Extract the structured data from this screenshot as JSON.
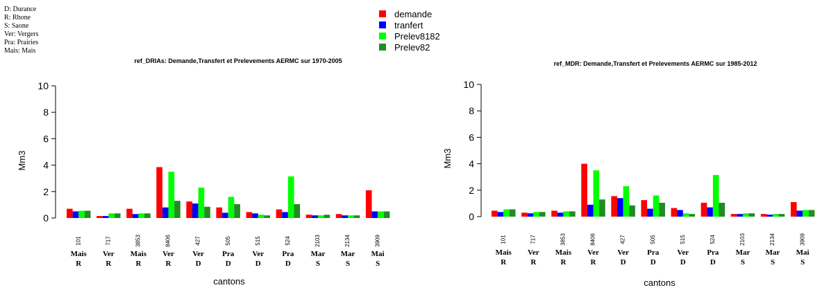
{
  "abbreviations": [
    "D: Durance",
    "R: Rhone",
    "S: Saone",
    "Ver: Vergers",
    "Pra: Prairies",
    "Mais: Mais"
  ],
  "legend": [
    {
      "label": "demande",
      "color": "#ff0000"
    },
    {
      "label": "tranfert",
      "color": "#0000ff"
    },
    {
      "label": "Prelev8182",
      "color": "#00ff00"
    },
    {
      "label": "Prelev82",
      "color": "#228b22"
    }
  ],
  "chart_data": [
    {
      "type": "bar",
      "title": "ref_DRIAs: Demande,Transfert et Prelevements AERMC sur 1970-2005",
      "xlabel": "cantons",
      "ylabel": "Mm3",
      "ylim": [
        0,
        10
      ],
      "yticks": [
        0,
        2,
        4,
        6,
        8,
        10
      ],
      "grid": false,
      "categories": [
        "101",
        "717",
        "3853",
        "8406",
        "427",
        "505",
        "515",
        "524",
        "2103",
        "2134",
        "3909"
      ],
      "category_labels": [
        [
          "Mais",
          "R"
        ],
        [
          "Ver",
          "R"
        ],
        [
          "Mais",
          "R"
        ],
        [
          "Ver",
          "R"
        ],
        [
          "Ver",
          "D"
        ],
        [
          "Pra",
          "D"
        ],
        [
          "Ver",
          "D"
        ],
        [
          "Pra",
          "D"
        ],
        [
          "Mar",
          "S"
        ],
        [
          "Mar",
          "S"
        ],
        [
          "Mai",
          "S"
        ]
      ],
      "series": [
        {
          "name": "demande",
          "values": [
            0.7,
            0.15,
            0.7,
            3.85,
            1.25,
            0.8,
            0.45,
            0.65,
            0.25,
            0.3,
            2.1
          ]
        },
        {
          "name": "tranfert",
          "values": [
            0.5,
            0.15,
            0.3,
            0.8,
            1.1,
            0.4,
            0.35,
            0.45,
            0.2,
            0.2,
            0.5
          ]
        },
        {
          "name": "Prelev8182",
          "values": [
            0.55,
            0.35,
            0.35,
            3.5,
            2.3,
            1.6,
            0.25,
            3.15,
            0.2,
            0.2,
            0.5
          ]
        },
        {
          "name": "Prelev82",
          "values": [
            0.55,
            0.35,
            0.35,
            1.3,
            0.85,
            1.05,
            0.2,
            1.05,
            0.25,
            0.2,
            0.5
          ]
        }
      ]
    },
    {
      "type": "bar",
      "title": "ref_MDR: Demande,Transfert et Prelevements AERMC sur 1985-2012",
      "xlabel": "cantons",
      "ylabel": "Mm3",
      "ylim": [
        0,
        10
      ],
      "yticks": [
        0,
        2,
        4,
        6,
        8,
        10
      ],
      "grid": false,
      "categories": [
        "101",
        "717",
        "3853",
        "8406",
        "427",
        "505",
        "515",
        "524",
        "2103",
        "2134",
        "3909"
      ],
      "category_labels": [
        [
          "Mais",
          "R"
        ],
        [
          "Ver",
          "R"
        ],
        [
          "Mais",
          "R"
        ],
        [
          "Ver",
          "R"
        ],
        [
          "Ver",
          "D"
        ],
        [
          "Pra",
          "D"
        ],
        [
          "Ver",
          "D"
        ],
        [
          "Pra",
          "D"
        ],
        [
          "Mar",
          "S"
        ],
        [
          "Mar",
          "S"
        ],
        [
          "Mai",
          "S"
        ]
      ],
      "series": [
        {
          "name": "demande",
          "values": [
            0.45,
            0.3,
            0.45,
            4.0,
            1.55,
            1.25,
            0.65,
            1.05,
            0.2,
            0.2,
            1.1
          ]
        },
        {
          "name": "tranfert",
          "values": [
            0.35,
            0.25,
            0.3,
            0.9,
            1.4,
            0.6,
            0.5,
            0.7,
            0.2,
            0.15,
            0.45
          ]
        },
        {
          "name": "Prelev8182",
          "values": [
            0.55,
            0.35,
            0.4,
            3.5,
            2.3,
            1.6,
            0.25,
            3.15,
            0.25,
            0.2,
            0.5
          ]
        },
        {
          "name": "Prelev82",
          "values": [
            0.55,
            0.35,
            0.4,
            1.3,
            0.85,
            1.05,
            0.2,
            1.05,
            0.25,
            0.2,
            0.5
          ]
        }
      ]
    }
  ]
}
